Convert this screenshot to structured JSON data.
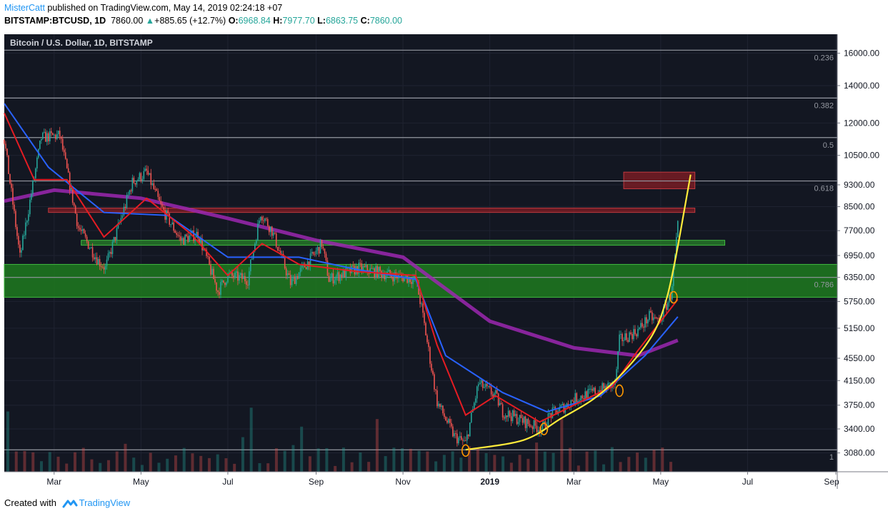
{
  "header": {
    "author": "MisterCatt",
    "published_text": " published on TradingView.com, May 14, 2019 02:24:18 +07",
    "symbol": "BITSTAMP:BTCUSD, 1D",
    "last": "7860.00",
    "arrow": "▲",
    "change": "+885.65 (+12.7%)",
    "o_label": "O:",
    "o_value": "6968.84",
    "h_label": "H:",
    "h_value": "7977.70",
    "l_label": "L:",
    "l_value": "6863.75",
    "c_label": "C:",
    "c_value": "7860.00"
  },
  "footer": {
    "created_with": "Created with",
    "brand": "TradingView"
  },
  "chart_data": {
    "type": "candlestick",
    "title": "Bitcoin / U.S. Dollar, 1D, BITSTAMP",
    "ylabel": "",
    "xlabel": "",
    "y_scale": "log",
    "ylim": [
      2850,
      17300
    ],
    "y_ticks": [
      16000,
      14000,
      12000,
      10500,
      9300,
      8500,
      7700,
      6950,
      6350,
      5750,
      5150,
      4550,
      4150,
      3750,
      3400,
      3080
    ],
    "y_tick_labels": [
      "16000.00",
      "14000.00",
      "12000.00",
      "10500.00",
      "9300.00",
      "8500.00",
      "7700.00",
      "6950.00",
      "6350.00",
      "5750.00",
      "5150.00",
      "4550.00",
      "4150.00",
      "3750.00",
      "3400.00",
      "3080.00"
    ],
    "x_range": [
      "2018-01-25",
      "2019-09-02"
    ],
    "x_ticks": [
      {
        "label": "Mar",
        "date": "2018-03-01",
        "bold": false
      },
      {
        "label": "May",
        "date": "2018-05-01",
        "bold": false
      },
      {
        "label": "Jul",
        "date": "2018-07-01",
        "bold": false
      },
      {
        "label": "Sep",
        "date": "2018-09-01",
        "bold": false
      },
      {
        "label": "Nov",
        "date": "2018-11-01",
        "bold": false
      },
      {
        "label": "2019",
        "date": "2019-01-01",
        "bold": true
      },
      {
        "label": "Mar",
        "date": "2019-03-01",
        "bold": false
      },
      {
        "label": "May",
        "date": "2019-05-01",
        "bold": false
      },
      {
        "label": "Jul",
        "date": "2019-07-01",
        "bold": false
      },
      {
        "label": "Sep",
        "date": "2019-09-01",
        "bold": false
      }
    ],
    "price_path": [
      [
        "2018-01-25",
        11200
      ],
      [
        "2018-02-05",
        6900
      ],
      [
        "2018-02-20",
        11300
      ],
      [
        "2018-03-05",
        11400
      ],
      [
        "2018-03-18",
        7800
      ],
      [
        "2018-04-01",
        6800
      ],
      [
        "2018-04-06",
        6600
      ],
      [
        "2018-04-25",
        9400
      ],
      [
        "2018-05-05",
        9800
      ],
      [
        "2018-05-15",
        8500
      ],
      [
        "2018-05-29",
        7400
      ],
      [
        "2018-06-10",
        7600
      ],
      [
        "2018-06-24",
        6000
      ],
      [
        "2018-07-01",
        6400
      ],
      [
        "2018-07-15",
        6300
      ],
      [
        "2018-07-24",
        8300
      ],
      [
        "2018-08-01",
        7700
      ],
      [
        "2018-08-14",
        6200
      ],
      [
        "2018-08-31",
        7000
      ],
      [
        "2018-09-05",
        7300
      ],
      [
        "2018-09-10",
        6300
      ],
      [
        "2018-10-01",
        6600
      ],
      [
        "2018-10-25",
        6400
      ],
      [
        "2018-11-10",
        6300
      ],
      [
        "2018-11-14",
        5600
      ],
      [
        "2018-11-25",
        3800
      ],
      [
        "2018-12-07",
        3300
      ],
      [
        "2018-12-15",
        3200
      ],
      [
        "2018-12-24",
        4100
      ],
      [
        "2019-01-05",
        3900
      ],
      [
        "2019-01-10",
        3650
      ],
      [
        "2019-01-31",
        3450
      ],
      [
        "2019-02-07",
        3400
      ],
      [
        "2019-02-12",
        3600
      ],
      [
        "2019-02-24",
        3750
      ],
      [
        "2019-03-01",
        3850
      ],
      [
        "2019-03-20",
        4000
      ],
      [
        "2019-03-30",
        4100
      ],
      [
        "2019-04-02",
        4900
      ],
      [
        "2019-04-15",
        5100
      ],
      [
        "2019-04-23",
        5400
      ],
      [
        "2019-04-30",
        5300
      ],
      [
        "2019-05-08",
        5900
      ],
      [
        "2019-05-11",
        6900
      ],
      [
        "2019-05-13",
        7860
      ]
    ],
    "ma_fast": [
      [
        "2018-01-25",
        12500
      ],
      [
        "2018-02-15",
        9500
      ],
      [
        "2018-03-10",
        9500
      ],
      [
        "2018-04-05",
        7500
      ],
      [
        "2018-05-05",
        8800
      ],
      [
        "2018-06-05",
        7600
      ],
      [
        "2018-07-01",
        6400
      ],
      [
        "2018-07-25",
        7300
      ],
      [
        "2018-08-20",
        6700
      ],
      [
        "2018-10-01",
        6500
      ],
      [
        "2018-11-10",
        6400
      ],
      [
        "2018-11-25",
        4800
      ],
      [
        "2018-12-15",
        3600
      ],
      [
        "2019-01-05",
        3900
      ],
      [
        "2019-02-05",
        3500
      ],
      [
        "2019-03-10",
        3850
      ],
      [
        "2019-03-28",
        4050
      ],
      [
        "2019-04-15",
        4700
      ],
      [
        "2019-05-13",
        5800
      ]
    ],
    "ma_slow": [
      [
        "2018-01-25",
        13000
      ],
      [
        "2018-02-25",
        10000
      ],
      [
        "2018-04-05",
        8300
      ],
      [
        "2018-05-20",
        8200
      ],
      [
        "2018-07-01",
        6900
      ],
      [
        "2018-08-20",
        6900
      ],
      [
        "2018-10-01",
        6550
      ],
      [
        "2018-11-10",
        6300
      ],
      [
        "2018-12-01",
        4600
      ],
      [
        "2019-01-10",
        3950
      ],
      [
        "2019-02-10",
        3650
      ],
      [
        "2019-03-20",
        3900
      ],
      [
        "2019-04-20",
        4600
      ],
      [
        "2019-05-13",
        5400
      ]
    ],
    "ma_200": [
      [
        "2018-01-25",
        8700
      ],
      [
        "2018-03-01",
        9100
      ],
      [
        "2018-05-01",
        8800
      ],
      [
        "2018-07-01",
        8100
      ],
      [
        "2018-09-01",
        7400
      ],
      [
        "2018-11-01",
        6900
      ],
      [
        "2019-01-01",
        5300
      ],
      [
        "2019-03-01",
        4750
      ],
      [
        "2019-04-15",
        4600
      ],
      [
        "2019-05-13",
        4900
      ]
    ],
    "fib_levels": [
      {
        "label": "0.236",
        "price": 16200
      },
      {
        "label": "0.382",
        "price": 13300
      },
      {
        "label": "0.5",
        "price": 11300
      },
      {
        "label": "0.618",
        "price": 9450
      },
      {
        "label": "0.786",
        "price": 6350
      },
      {
        "label": "1",
        "price": 3120
      }
    ],
    "zones": [
      {
        "kind": "support",
        "color": "#1e7a1e",
        "from": "2018-01-25",
        "to": "2019-09-02",
        "low": 5850,
        "high": 6700
      },
      {
        "kind": "resistance",
        "color": "#8b1e24",
        "from": "2019-04-05",
        "to": "2019-05-25",
        "low": 9150,
        "high": 9800
      },
      {
        "kind": "resistance",
        "color": "#8b1e24",
        "from": "2018-02-25",
        "to": "2019-05-25",
        "low": 8300,
        "high": 8450
      },
      {
        "kind": "support",
        "color": "#2a8a2a",
        "from": "2018-03-20",
        "to": "2019-06-15",
        "low": 7250,
        "high": 7400
      }
    ],
    "curve": [
      [
        "2018-12-15",
        3120
      ],
      [
        "2019-01-25",
        3250
      ],
      [
        "2019-02-20",
        3550
      ],
      [
        "2019-03-15",
        3850
      ],
      [
        "2019-04-05",
        4300
      ],
      [
        "2019-04-25",
        5000
      ],
      [
        "2019-05-05",
        5800
      ],
      [
        "2019-05-12",
        7000
      ],
      [
        "2019-05-18",
        8500
      ],
      [
        "2019-05-22",
        9700
      ]
    ],
    "markers": [
      {
        "date": "2018-12-15",
        "price": 3110
      },
      {
        "date": "2019-02-08",
        "price": 3400
      },
      {
        "date": "2019-04-02",
        "price": 3980
      },
      {
        "date": "2019-05-10",
        "price": 5850
      }
    ],
    "volume_bars": 80
  }
}
